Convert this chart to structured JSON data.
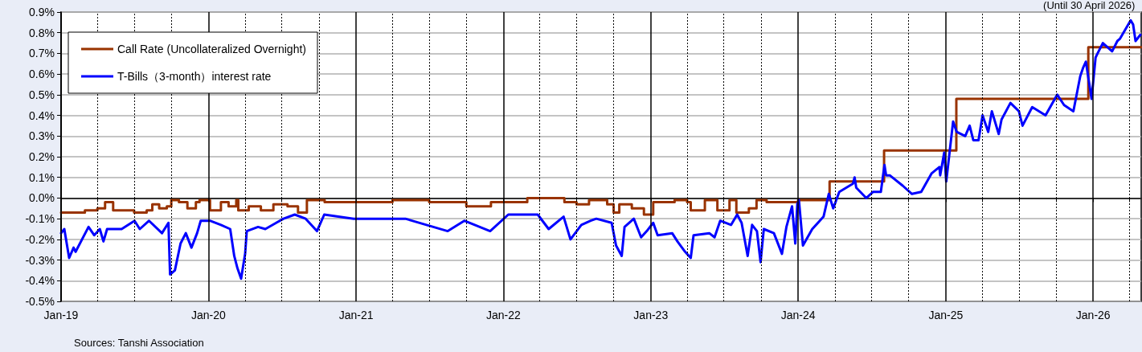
{
  "chart_data": {
    "type": "line",
    "subtitle": "(Until 30 April 2026)",
    "annotations": [
      "Sources: Tanshi Association"
    ],
    "xlim": [
      "2019-01-01",
      "2026-04-30"
    ],
    "xticks": [
      {
        "value": "2019-01-01",
        "label": "Jan-19"
      },
      {
        "value": "2019-04-01",
        "label": null
      },
      {
        "value": "2019-07-01",
        "label": null
      },
      {
        "value": "2019-10-01",
        "label": null
      },
      {
        "value": "2020-01-01",
        "label": "Jan-20"
      },
      {
        "value": "2020-04-01",
        "label": null
      },
      {
        "value": "2020-07-01",
        "label": null
      },
      {
        "value": "2020-10-01",
        "label": null
      },
      {
        "value": "2021-01-01",
        "label": "Jan-21"
      },
      {
        "value": "2021-04-01",
        "label": null
      },
      {
        "value": "2021-07-01",
        "label": null
      },
      {
        "value": "2021-10-01",
        "label": null
      },
      {
        "value": "2022-01-01",
        "label": "Jan-22"
      },
      {
        "value": "2022-04-01",
        "label": null
      },
      {
        "value": "2022-07-01",
        "label": null
      },
      {
        "value": "2022-10-01",
        "label": null
      },
      {
        "value": "2023-01-01",
        "label": "Jan-23"
      },
      {
        "value": "2023-04-01",
        "label": null
      },
      {
        "value": "2023-07-01",
        "label": null
      },
      {
        "value": "2023-10-01",
        "label": null
      },
      {
        "value": "2024-01-01",
        "label": "Jan-24"
      },
      {
        "value": "2024-04-01",
        "label": null
      },
      {
        "value": "2024-07-01",
        "label": null
      },
      {
        "value": "2024-10-01",
        "label": null
      },
      {
        "value": "2025-01-01",
        "label": "Jan-25"
      },
      {
        "value": "2025-04-01",
        "label": null
      },
      {
        "value": "2025-07-01",
        "label": null
      },
      {
        "value": "2025-10-01",
        "label": null
      },
      {
        "value": "2026-01-01",
        "label": "Jan-26"
      },
      {
        "value": "2026-04-01",
        "label": null
      }
    ],
    "ylim": [
      -0.5,
      0.9
    ],
    "yticks": [
      {
        "value": -0.5,
        "label": "-0.5%"
      },
      {
        "value": -0.4,
        "label": "-0.4%"
      },
      {
        "value": -0.3,
        "label": "-0.3%"
      },
      {
        "value": -0.2,
        "label": "-0.2%"
      },
      {
        "value": -0.1,
        "label": "-0.1%"
      },
      {
        "value": 0,
        "label": "0.0%"
      },
      {
        "value": 0.1,
        "label": "0.1%"
      },
      {
        "value": 0.2,
        "label": "0.2%"
      },
      {
        "value": 0.3,
        "label": "0.3%"
      },
      {
        "value": 0.4,
        "label": "0.4%"
      },
      {
        "value": 0.5,
        "label": "0.5%"
      },
      {
        "value": 0.6,
        "label": "0.6%"
      },
      {
        "value": 0.7,
        "label": "0.7%"
      },
      {
        "value": 0.8,
        "label": "0.8%"
      },
      {
        "value": 0.9,
        "label": "0.9%"
      }
    ],
    "grid": true,
    "legend": "top left",
    "marker": "none",
    "line_style": "solid",
    "series": [
      {
        "name": "Call Rate (Uncollateralized Overnight)",
        "type": "step",
        "color": "#993300",
        "x": [
          "2019-01-01",
          "2019-03-01",
          "2019-04-01",
          "2019-04-20",
          "2019-05-10",
          "2019-07-01",
          "2019-08-01",
          "2019-08-15",
          "2019-09-01",
          "2019-09-20",
          "2019-10-01",
          "2019-10-20",
          "2019-11-10",
          "2019-12-01",
          "2019-12-10",
          "2020-01-05",
          "2020-02-01",
          "2020-02-20",
          "2020-03-10",
          "2020-03-15",
          "2020-04-10",
          "2020-05-10",
          "2020-06-10",
          "2020-07-15",
          "2020-08-10",
          "2020-09-01",
          "2020-10-15",
          "2021-01-01",
          "2021-04-01",
          "2021-07-01",
          "2021-10-01",
          "2021-12-01",
          "2022-03-01",
          "2022-06-01",
          "2022-07-01",
          "2022-08-01",
          "2022-09-15",
          "2022-10-01",
          "2022-10-15",
          "2022-11-15",
          "2022-12-15",
          "2023-01-07",
          "2023-03-01",
          "2023-04-01",
          "2023-04-10",
          "2023-05-15",
          "2023-06-15",
          "2023-07-15",
          "2023-08-01",
          "2023-09-01",
          "2023-09-20",
          "2023-10-15",
          "2024-01-01",
          "2024-03-19",
          "2024-08-01",
          "2025-01-27",
          "2025-12-20",
          "2026-04-30"
        ],
        "values": [
          -0.07,
          -0.06,
          -0.05,
          -0.02,
          -0.06,
          -0.07,
          -0.06,
          -0.03,
          -0.05,
          -0.04,
          -0.01,
          -0.02,
          -0.05,
          -0.02,
          -0.01,
          -0.06,
          -0.02,
          -0.04,
          -0.01,
          -0.06,
          -0.04,
          -0.06,
          -0.03,
          -0.04,
          -0.07,
          -0.01,
          -0.02,
          -0.02,
          -0.01,
          -0.02,
          -0.04,
          -0.02,
          0,
          -0.02,
          -0.03,
          -0.01,
          -0.03,
          -0.07,
          -0.03,
          -0.05,
          -0.08,
          -0.02,
          -0.01,
          -0.02,
          -0.06,
          -0.01,
          -0.06,
          -0.01,
          -0.07,
          -0.05,
          -0.01,
          -0.02,
          -0.01,
          0.08,
          0.23,
          0.48,
          0.73,
          0.73
        ]
      },
      {
        "name": "T-Bills（3-month）interest rate",
        "type": "line",
        "color": "#0000ff",
        "x": [
          "2019-01-01",
          "2019-01-09",
          "2019-01-21",
          "2019-02-01",
          "2019-02-06",
          "2019-03-10",
          "2019-03-24",
          "2019-04-07",
          "2019-04-16",
          "2019-04-25",
          "2019-05-31",
          "2019-07-02",
          "2019-07-15",
          "2019-08-07",
          "2019-09-08",
          "2019-09-24",
          "2019-09-28",
          "2019-10-10",
          "2019-10-24",
          "2019-11-06",
          "2019-11-20",
          "2019-12-04",
          "2019-12-13",
          "2020-01-05",
          "2020-02-01",
          "2020-02-24",
          "2020-03-05",
          "2020-03-13",
          "2020-03-22",
          "2020-04-01",
          "2020-04-05",
          "2020-05-03",
          "2020-05-21",
          "2020-06-17",
          "2020-07-05",
          "2020-08-02",
          "2020-08-29",
          "2020-09-26",
          "2020-10-14",
          "2020-12-26",
          "2021-05-03",
          "2021-08-16",
          "2021-09-26",
          "2021-11-29",
          "2022-01-13",
          "2022-03-27",
          "2022-04-23",
          "2022-05-30",
          "2022-06-16",
          "2022-07-13",
          "2022-08-05",
          "2022-08-19",
          "2022-09-26",
          "2022-10-07",
          "2022-10-21",
          "2022-10-28",
          "2022-11-20",
          "2022-12-08",
          "2022-12-22",
          "2023-01-07",
          "2023-01-18",
          "2023-02-23",
          "2023-03-08",
          "2023-03-27",
          "2023-04-10",
          "2023-04-17",
          "2023-05-26",
          "2023-06-08",
          "2023-06-22",
          "2023-07-19",
          "2023-08-03",
          "2023-08-14",
          "2023-08-29",
          "2023-09-09",
          "2023-09-21",
          "2023-09-30",
          "2023-10-08",
          "2023-11-02",
          "2023-11-22",
          "2023-12-03",
          "2023-12-17",
          "2023-12-25",
          "2023-12-30",
          "2024-01-03",
          "2024-01-13",
          "2024-02-05",
          "2024-03-04",
          "2024-03-17",
          "2024-03-28",
          "2024-04-12",
          "2024-05-16",
          "2024-05-20",
          "2024-05-24",
          "2024-06-18",
          "2024-07-05",
          "2024-07-24",
          "2024-08-02",
          "2024-08-06",
          "2024-08-15",
          "2024-09-16",
          "2024-10-09",
          "2024-11-01",
          "2024-11-27",
          "2024-12-16",
          "2024-12-18",
          "2024-12-28",
          "2025-01-02",
          "2025-01-19",
          "2025-01-28",
          "2025-02-18",
          "2025-03-01",
          "2025-03-10",
          "2025-03-23",
          "2025-04-02",
          "2025-04-16",
          "2025-04-25",
          "2025-05-12",
          "2025-05-19",
          "2025-06-10",
          "2025-07-01",
          "2025-07-10",
          "2025-08-03",
          "2025-09-05",
          "2025-10-04",
          "2025-10-21",
          "2025-11-13",
          "2025-11-30",
          "2025-12-07",
          "2025-12-14",
          "2025-12-28",
          "2026-01-07",
          "2026-01-12",
          "2026-01-25",
          "2026-02-17",
          "2026-03-02",
          "2026-03-08",
          "2026-04-04",
          "2026-04-10",
          "2026-04-16",
          "2026-04-28"
        ],
        "values": [
          -0.17,
          -0.15,
          -0.29,
          -0.24,
          -0.26,
          -0.14,
          -0.18,
          -0.15,
          -0.21,
          -0.15,
          -0.15,
          -0.11,
          -0.15,
          -0.11,
          -0.17,
          -0.12,
          -0.37,
          -0.35,
          -0.22,
          -0.17,
          -0.24,
          -0.17,
          -0.11,
          -0.11,
          -0.13,
          -0.15,
          -0.28,
          -0.34,
          -0.39,
          -0.27,
          -0.16,
          -0.14,
          -0.15,
          -0.12,
          -0.1,
          -0.08,
          -0.1,
          -0.16,
          -0.08,
          -0.1,
          -0.1,
          -0.16,
          -0.11,
          -0.16,
          -0.08,
          -0.08,
          -0.15,
          -0.09,
          -0.2,
          -0.13,
          -0.11,
          -0.1,
          -0.12,
          -0.23,
          -0.28,
          -0.14,
          -0.1,
          -0.19,
          -0.16,
          -0.12,
          -0.18,
          -0.17,
          -0.21,
          -0.26,
          -0.29,
          -0.18,
          -0.17,
          -0.19,
          -0.11,
          -0.13,
          -0.08,
          -0.12,
          -0.28,
          -0.13,
          -0.16,
          -0.31,
          -0.15,
          -0.17,
          -0.27,
          -0.14,
          -0.04,
          -0.22,
          -0.03,
          -0.01,
          -0.23,
          -0.15,
          -0.09,
          0.02,
          -0.05,
          0.03,
          0.07,
          0.1,
          0.05,
          0,
          0.03,
          0.03,
          0.16,
          0.11,
          0.11,
          0.06,
          0.02,
          0.03,
          0.12,
          0.15,
          0.11,
          0.22,
          0.08,
          0.37,
          0.32,
          0.3,
          0.35,
          0.28,
          0.28,
          0.4,
          0.32,
          0.42,
          0.31,
          0.38,
          0.46,
          0.42,
          0.35,
          0.44,
          0.4,
          0.5,
          0.45,
          0.42,
          0.59,
          0.63,
          0.66,
          0.48,
          0.68,
          0.7,
          0.75,
          0.71,
          0.76,
          0.77,
          0.86,
          0.84,
          0.76,
          0.79
        ]
      }
    ]
  }
}
